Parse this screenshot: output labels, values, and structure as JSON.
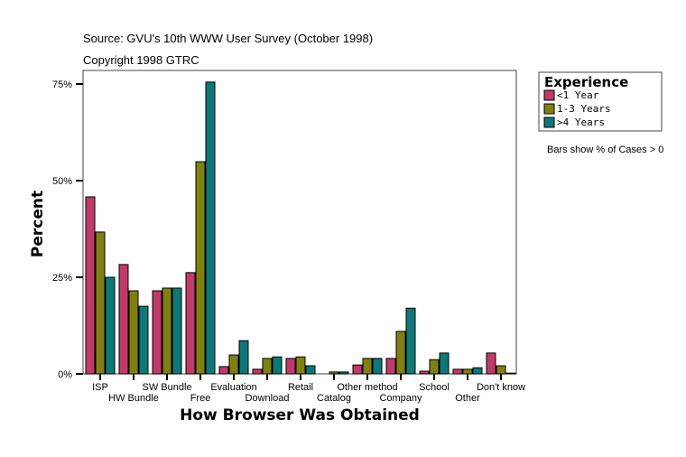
{
  "header": {
    "source": "Source: GVU's 10th WWW User Survey (October 1998)",
    "copyright": "Copyright 1998 GTRC"
  },
  "note": "Bars show % of Cases > 0",
  "chart_data": {
    "type": "bar",
    "title": "",
    "xlabel": "How Browser Was Obtained",
    "ylabel": "Percent",
    "ylim": [
      0,
      75
    ],
    "yticks": [
      0,
      25,
      50,
      75
    ],
    "ytick_labels": [
      "0%",
      "25%",
      "50%",
      "75%"
    ],
    "grid": false,
    "legend": {
      "title": "Experience",
      "placement": "top-right, outside"
    },
    "categories": [
      "ISP",
      "HW Bundle",
      "SW Bundle",
      "Free",
      "Evaluation",
      "Download",
      "Retail",
      "Catalog",
      "Other method",
      "Company",
      "School",
      "Other",
      "Don't know"
    ],
    "series": [
      {
        "name": "<1 Year",
        "color": "#c03a6a",
        "values": [
          45.8,
          28.3,
          21.5,
          26.2,
          1.9,
          1.2,
          4.0,
          0,
          2.3,
          4.0,
          0.7,
          1.2,
          5.4
        ]
      },
      {
        "name": "1-3 Years",
        "color": "#808012",
        "values": [
          36.7,
          21.5,
          22.2,
          54.9,
          4.9,
          4.0,
          4.4,
          0.5,
          4.0,
          11.0,
          3.7,
          1.2,
          2.1
        ]
      },
      {
        "name": ">4 Years",
        "color": "#0e7878",
        "values": [
          25.0,
          17.5,
          22.2,
          75.5,
          8.6,
          4.4,
          2.1,
          0.5,
          4.0,
          17.0,
          5.4,
          1.6,
          0.2
        ]
      }
    ]
  }
}
